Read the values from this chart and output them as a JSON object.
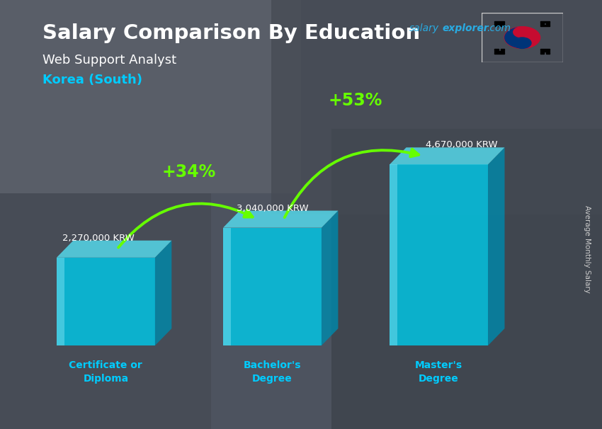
{
  "title_main": "Salary Comparison By Education",
  "subtitle_job": "Web Support Analyst",
  "subtitle_country": "Korea (South)",
  "ylabel": "Average Monthly Salary",
  "categories": [
    "Certificate or\nDiploma",
    "Bachelor's\nDegree",
    "Master's\nDegree"
  ],
  "values": [
    2270000,
    3040000,
    4670000
  ],
  "value_labels": [
    "2,270,000 KRW",
    "3,040,000 KRW",
    "4,670,000 KRW"
  ],
  "pct_labels": [
    "+34%",
    "+53%"
  ],
  "bar_face_color": "#00c8e8",
  "bar_side_color": "#0088aa",
  "bar_top_color": "#55ddf0",
  "bar_alpha": 0.82,
  "title_color": "#ffffff",
  "subtitle_color": "#ffffff",
  "country_color": "#00ccff",
  "value_label_color": "#ffffff",
  "pct_color": "#66ff00",
  "arrow_color": "#66ff00",
  "xtick_color": "#00ccff",
  "bg_color": "#5a6070",
  "salary_color": "#29abe2",
  "explorer_color": "#29abe2",
  "com_color": "#29abe2",
  "flag_bg": "#ffffff",
  "ylabel_color": "#cccccc"
}
